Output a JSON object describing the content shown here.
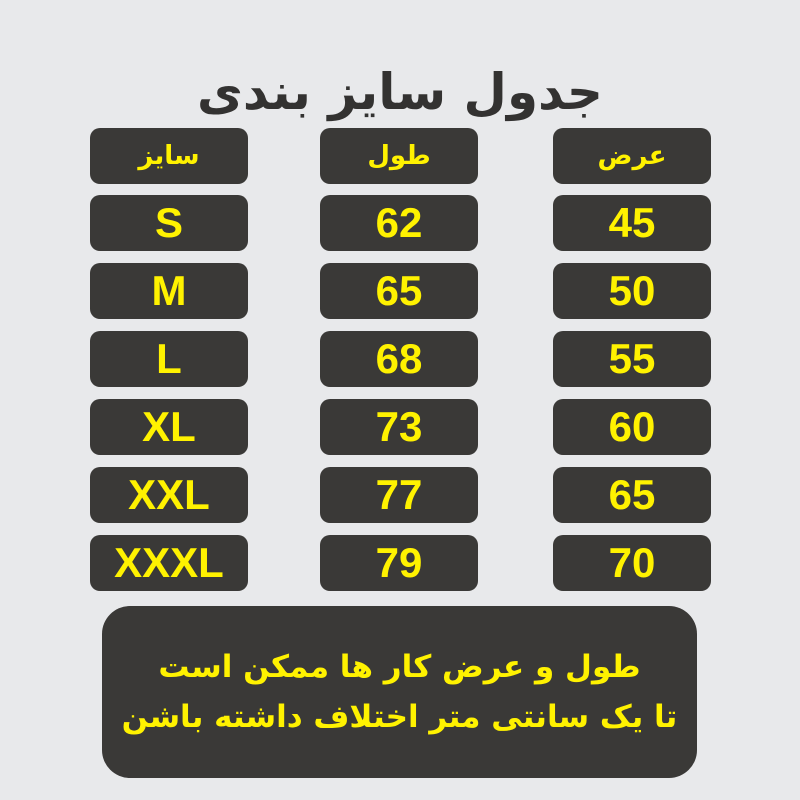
{
  "title": "جدول سایز بندی",
  "headers": {
    "size": "سایز",
    "length": "طول",
    "width": "عرض"
  },
  "rows": [
    {
      "size": "S",
      "length": "62",
      "width": "45"
    },
    {
      "size": "M",
      "length": "65",
      "width": "50"
    },
    {
      "size": "L",
      "length": "68",
      "width": "55"
    },
    {
      "size": "XL",
      "length": "73",
      "width": "60"
    },
    {
      "size": "XXL",
      "length": "77",
      "width": "65"
    },
    {
      "size": "XXXL",
      "length": "79",
      "width": "70"
    }
  ],
  "note": {
    "line1": "طول و عرض کار ها ممکن است",
    "line2": "تا یک سانتی متر اختلاف داشته باشن"
  },
  "colors": {
    "background": "#e8e9eb",
    "box": "#3a3937",
    "accent": "#fff200",
    "title": "#333231"
  }
}
